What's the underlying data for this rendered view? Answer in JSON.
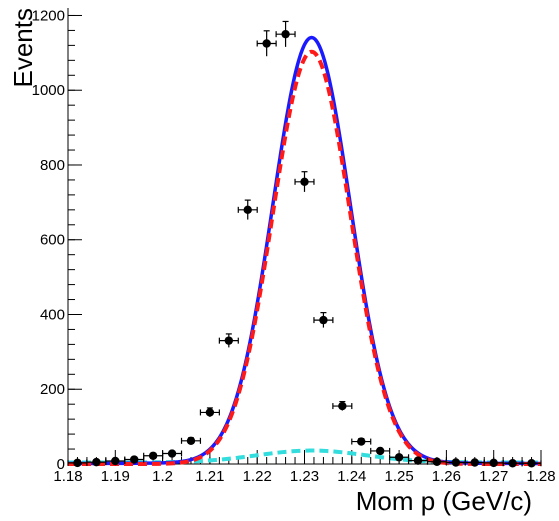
{
  "chart_data": {
    "type": "scatter",
    "title": "",
    "xlabel": "Mom p (GeV/c)",
    "ylabel": "Events",
    "xlim": [
      1.18,
      1.28
    ],
    "ylim": [
      0,
      1220
    ],
    "x_ticks": [
      1.18,
      1.19,
      1.2,
      1.21,
      1.22,
      1.23,
      1.24,
      1.25,
      1.26,
      1.27,
      1.28
    ],
    "x_tick_labels": [
      "1.18",
      "1.19",
      "1.2",
      "1.21",
      "1.22",
      "1.23",
      "1.24",
      "1.25",
      "1.26",
      "1.27",
      "1.28"
    ],
    "y_ticks": [
      0,
      200,
      400,
      600,
      800,
      1000,
      1200
    ],
    "y_tick_labels": [
      "0",
      "200",
      "400",
      "600",
      "800",
      "1000",
      "1200"
    ],
    "grid": false,
    "legend": "none",
    "bin_width": 0.004,
    "series": [
      {
        "kind": "points-with-errors",
        "color": "#000000",
        "x": [
          1.182,
          1.186,
          1.19,
          1.194,
          1.198,
          1.202,
          1.206,
          1.21,
          1.214,
          1.218,
          1.222,
          1.226,
          1.23,
          1.234,
          1.238,
          1.242,
          1.246,
          1.25,
          1.254,
          1.258,
          1.262,
          1.266,
          1.27,
          1.274,
          1.278
        ],
        "y": [
          3,
          5,
          8,
          12,
          22,
          28,
          62,
          138,
          330,
          680,
          1125,
          1150,
          755,
          385,
          155,
          60,
          35,
          18,
          9,
          6,
          4,
          4,
          3,
          2,
          2
        ],
        "yerr": [
          2,
          2,
          3,
          3,
          5,
          5,
          8,
          12,
          18,
          26,
          34,
          34,
          27,
          20,
          12,
          8,
          6,
          4,
          3,
          2,
          2,
          2,
          2,
          2,
          2
        ]
      },
      {
        "kind": "line",
        "color": "#1a1aff",
        "style": "solid",
        "peak_x": 1.2315,
        "peak_y": 1135,
        "width": 0.0082
      },
      {
        "kind": "line",
        "color": "#ff1a1a",
        "style": "dashed",
        "peak_x": 1.2315,
        "peak_y": 1103,
        "width": 0.0082
      },
      {
        "kind": "line",
        "color": "#33dddd",
        "style": "dashed",
        "peak_x": 1.2315,
        "peak_y": 32,
        "width": 0.0115,
        "baseline": 4
      }
    ]
  }
}
